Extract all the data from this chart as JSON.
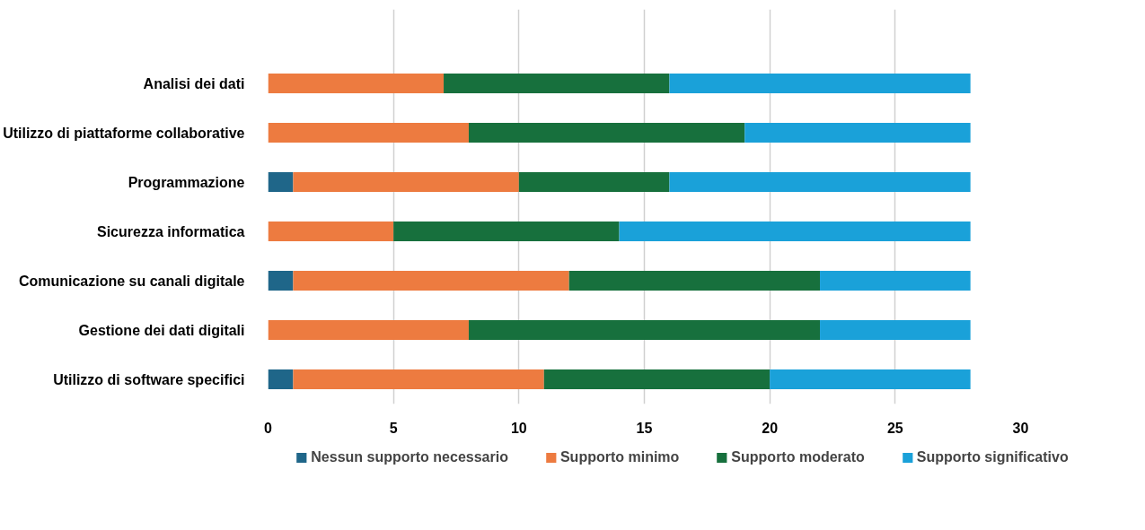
{
  "chart_data": {
    "type": "bar",
    "orientation": "horizontal",
    "stacked": true,
    "categories": [
      "Analisi dei dati",
      "Utilizzo di piattaforme collaborative",
      "Programmazione",
      "Sicurezza informatica",
      "Comunicazione su canali digitale",
      "Gestione dei dati digitali",
      "Utilizzo di software specifici"
    ],
    "series": [
      {
        "name": "Nessun supporto necessario",
        "color": "#1f6689",
        "values": [
          0,
          0,
          1,
          0,
          1,
          0,
          1
        ]
      },
      {
        "name": "Supporto minimo",
        "color": "#ed7b40",
        "values": [
          7,
          8,
          9,
          5,
          11,
          8,
          10
        ]
      },
      {
        "name": "Supporto moderato",
        "color": "#17703d",
        "values": [
          9,
          11,
          6,
          9,
          10,
          14,
          9
        ]
      },
      {
        "name": "Supporto significativo",
        "color": "#1aa1d9",
        "values": [
          12,
          9,
          12,
          14,
          6,
          6,
          8
        ]
      }
    ],
    "xlim": [
      0,
      30
    ],
    "xticks": [
      0,
      5,
      10,
      15,
      20,
      25,
      30
    ],
    "grid": "x",
    "legend": "bottom"
  }
}
